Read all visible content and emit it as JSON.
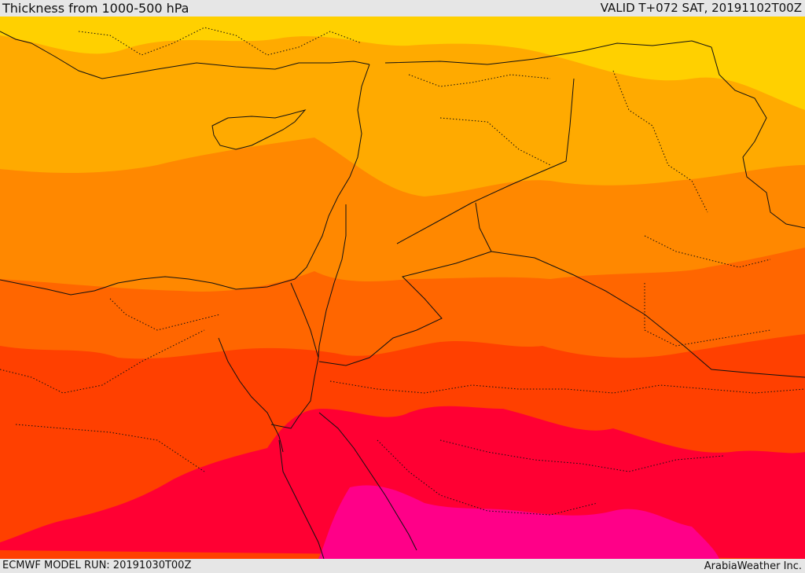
{
  "header": {
    "title": "Thickness from 1000-500 hPa",
    "valid": "VALID T+072 SAT, 20191102T00Z"
  },
  "footer": {
    "model_run": "ECMWF MODEL RUN: 20191030T00Z",
    "credit": "ArabiaWeather Inc."
  },
  "colors": {
    "band_yellow": "#ffd000",
    "band_light_orange": "#ffaa00",
    "band_orange": "#ff8800",
    "band_dark_orange": "#ff6600",
    "band_red_orange": "#ff4000",
    "band_crimson": "#ff0033",
    "band_magenta": "#ff0088",
    "coastline": "#111111",
    "border": "#111111"
  }
}
